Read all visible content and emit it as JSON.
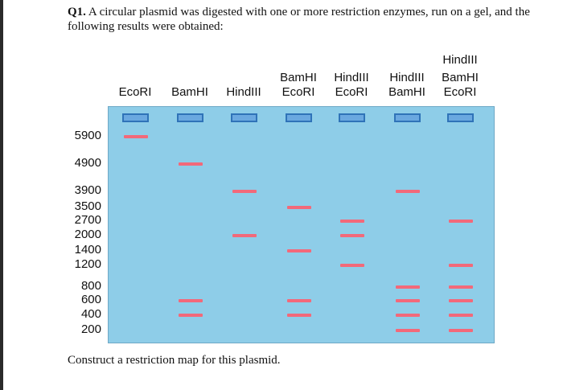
{
  "question": {
    "number": "Q1.",
    "text": " A circular plasmid was digested with one or more restriction enzymes, run on a gel, and the following results were obtained:"
  },
  "lanes": [
    {
      "line1": "",
      "line2": "",
      "line3": "EcoRI"
    },
    {
      "line1": "",
      "line2": "",
      "line3": "BamHI"
    },
    {
      "line1": "",
      "line2": "",
      "line3": "HindIII"
    },
    {
      "line1": "",
      "line2": "BamHI",
      "line3": "EcoRI"
    },
    {
      "line1": "",
      "line2": "HindIII",
      "line3": "EcoRI"
    },
    {
      "line1": "",
      "line2": "HindIII",
      "line3": "BamHI"
    },
    {
      "line1": "HindIII",
      "line2": "BamHI",
      "line3": "EcoRI"
    }
  ],
  "size_markers": [
    "5900",
    "4900",
    "3900",
    "3500",
    "2700",
    "2000",
    "1400",
    "1200",
    "800",
    "600",
    "400",
    "200"
  ],
  "bands_bp": [
    [
      5900
    ],
    [
      4900,
      600,
      400
    ],
    [
      3900,
      2000
    ],
    [
      3500,
      1400,
      600,
      400
    ],
    [
      2700,
      2000,
      1200
    ],
    [
      3900,
      800,
      600,
      400,
      200
    ],
    [
      2700,
      1200,
      800,
      600,
      400,
      200
    ]
  ],
  "colors": {
    "gel": "#8ecde8",
    "band": "#f2697a",
    "well": "#2f73b8"
  },
  "footer": "Construct a restriction map for this plasmid."
}
